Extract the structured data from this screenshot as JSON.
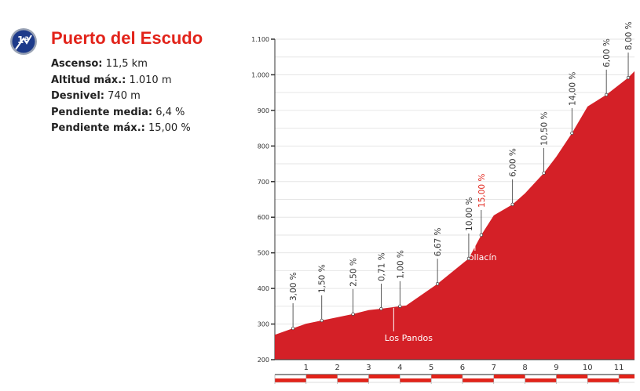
{
  "header": {
    "title": "Puerto del Escudo",
    "badge": "1ª",
    "stats": [
      {
        "label": "Ascenso:",
        "value": "11,5 km"
      },
      {
        "label": "Altitud máx.:",
        "value": "1.010 m"
      },
      {
        "label": "Desnivel:",
        "value": "740 m"
      },
      {
        "label": "Pendiente media:",
        "value": "6,4 %"
      },
      {
        "label": "Pendiente máx.:",
        "value": "15,00 %"
      }
    ]
  },
  "chart_data": {
    "type": "area",
    "ylim": [
      200,
      1100
    ],
    "xlim": [
      0,
      11.5
    ],
    "yticks": [
      200,
      300,
      400,
      500,
      600,
      700,
      800,
      900,
      1000,
      1100
    ],
    "ytick_labels": [
      "200",
      "300",
      "400",
      "500",
      "600",
      "700",
      "800",
      "900",
      "1.000",
      "1.100"
    ],
    "xticks": [
      1,
      2,
      3,
      4,
      5,
      6,
      7,
      8,
      9,
      10,
      11
    ],
    "xtick_labels": [
      "1",
      "2",
      "3",
      "4",
      "5",
      "6",
      "7",
      "8",
      "9",
      "10",
      "11"
    ],
    "grid": true,
    "colors": {
      "fill": "#d42027",
      "highlight": "#e2231a"
    },
    "profile": [
      [
        0,
        270
      ],
      [
        0.58,
        288
      ],
      [
        1,
        301
      ],
      [
        1.5,
        310
      ],
      [
        2,
        319
      ],
      [
        2.5,
        328
      ],
      [
        3,
        339
      ],
      [
        3.4,
        343
      ],
      [
        4,
        350
      ],
      [
        4.2,
        352
      ],
      [
        5.2,
        413
      ],
      [
        6.2,
        484
      ],
      [
        6.6,
        550
      ],
      [
        7,
        605
      ],
      [
        7.6,
        636
      ],
      [
        8,
        667
      ],
      [
        8.6,
        724
      ],
      [
        9,
        770
      ],
      [
        9.5,
        836
      ],
      [
        10,
        911
      ],
      [
        10.6,
        944
      ],
      [
        11.3,
        992
      ],
      [
        11.5,
        1010
      ]
    ],
    "gradient_markers": [
      {
        "km": 0.58,
        "alt": 288,
        "label": "3,00 %"
      },
      {
        "km": 1.5,
        "alt": 310,
        "label": "1,50 %"
      },
      {
        "km": 2.5,
        "alt": 328,
        "label": "2,50 %"
      },
      {
        "km": 3.4,
        "alt": 343,
        "label": "0,71 %"
      },
      {
        "km": 4,
        "alt": 350,
        "label": "1,00 %"
      },
      {
        "km": 5.2,
        "alt": 413,
        "label": "6,67 %"
      },
      {
        "km": 6.2,
        "alt": 484,
        "label": "10,00 %"
      },
      {
        "km": 6.6,
        "alt": 550,
        "label": "15,00 %",
        "highlight": true
      },
      {
        "km": 7.6,
        "alt": 636,
        "label": "6,00 %"
      },
      {
        "km": 8.6,
        "alt": 724,
        "label": "10,50 %"
      },
      {
        "km": 9.5,
        "alt": 836,
        "label": "14,00 %"
      },
      {
        "km": 10.6,
        "alt": 944,
        "label": "6,00 %"
      },
      {
        "km": 11.3,
        "alt": 992,
        "label": "8,00 %"
      }
    ],
    "places": [
      {
        "km": 3.8,
        "label": "Los Pandos",
        "side": "below"
      },
      {
        "km": 6.4,
        "label": "Bollacín",
        "side": "below"
      }
    ]
  }
}
